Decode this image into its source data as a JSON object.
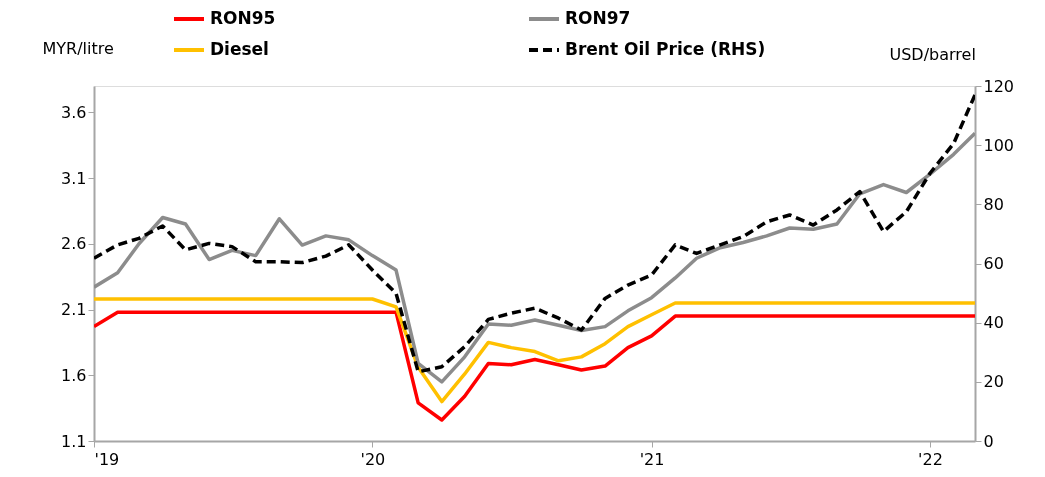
{
  "chart_data": {
    "type": "line",
    "ylabel": "MYR/litre",
    "y2label": "USD/barrel",
    "x": [
      "2019-01",
      "2019-02",
      "2019-03",
      "2019-04",
      "2019-05",
      "2019-06",
      "2019-07",
      "2019-08",
      "2019-09",
      "2019-10",
      "2019-11",
      "2019-12",
      "2020-01",
      "2020-02",
      "2020-03",
      "2020-04",
      "2020-05",
      "2020-06",
      "2020-07",
      "2020-08",
      "2020-09",
      "2020-10",
      "2020-11",
      "2020-12",
      "2021-01",
      "2021-02",
      "2021-03",
      "2021-04",
      "2021-05",
      "2021-06",
      "2021-07",
      "2021-08",
      "2021-09",
      "2021-10",
      "2021-11",
      "2021-12",
      "2022-01",
      "2022-02",
      "2022-03"
    ],
    "series": [
      {
        "name": "RON95",
        "color": "#ff0000",
        "line_style": "solid",
        "values": [
          1.97,
          2.08,
          2.08,
          2.08,
          2.08,
          2.08,
          2.08,
          2.08,
          2.08,
          2.08,
          2.08,
          2.08,
          2.08,
          2.08,
          1.39,
          1.26,
          1.44,
          1.69,
          1.68,
          1.72,
          1.68,
          1.64,
          1.67,
          1.81,
          1.9,
          2.05,
          2.05,
          2.05,
          2.05,
          2.05,
          2.05,
          2.05,
          2.05,
          2.05,
          2.05,
          2.05,
          2.05,
          2.05,
          2.05
        ]
      },
      {
        "name": "Diesel",
        "color": "#ffc000",
        "line_style": "solid",
        "values": [
          2.18,
          2.18,
          2.18,
          2.18,
          2.18,
          2.18,
          2.18,
          2.18,
          2.18,
          2.18,
          2.18,
          2.18,
          2.18,
          2.12,
          1.66,
          1.4,
          1.61,
          1.85,
          1.81,
          1.78,
          1.71,
          1.74,
          1.84,
          1.97,
          2.06,
          2.15,
          2.15,
          2.15,
          2.15,
          2.15,
          2.15,
          2.15,
          2.15,
          2.15,
          2.15,
          2.15,
          2.15,
          2.15,
          2.15
        ]
      },
      {
        "name": "RON97",
        "color": "#8c8c8c",
        "line_style": "solid",
        "values": [
          2.27,
          2.38,
          2.6,
          2.8,
          2.75,
          2.48,
          2.55,
          2.51,
          2.79,
          2.59,
          2.66,
          2.63,
          2.51,
          2.4,
          1.69,
          1.55,
          1.74,
          1.99,
          1.98,
          2.02,
          1.98,
          1.94,
          1.97,
          2.09,
          2.19,
          2.34,
          2.49,
          2.57,
          2.61,
          2.66,
          2.72,
          2.71,
          2.75,
          2.98,
          3.05,
          2.99,
          3.13,
          3.28,
          3.44
        ]
      },
      {
        "name": "Brent Oil Price (RHS)",
        "color": "#000000",
        "line_style": "dashed",
        "axis": "y2",
        "values": [
          61.8,
          66.3,
          68.5,
          72.7,
          64.6,
          66.8,
          65.7,
          60.6,
          60.6,
          60.3,
          62.5,
          66.3,
          57.8,
          49.9,
          23.4,
          25.1,
          31.9,
          41.1,
          43.2,
          44.9,
          41.5,
          37.5,
          48.2,
          52.7,
          56.1,
          66.3,
          63.4,
          66.3,
          69.1,
          74.1,
          76.4,
          73.0,
          78.1,
          84.3,
          70.8,
          77.5,
          90.5,
          100.6,
          117.0
        ]
      }
    ],
    "xlim": [
      "2019-01",
      "2022-03"
    ],
    "xticks": [
      {
        "value": "2019-01",
        "label": "'19"
      },
      {
        "value": "2020-01",
        "label": "'20"
      },
      {
        "value": "2021-01",
        "label": "'21"
      },
      {
        "value": "2022-01",
        "label": "'22"
      }
    ],
    "ylim": [
      1.1,
      3.8
    ],
    "yticks": [
      1.1,
      1.6,
      2.1,
      2.6,
      3.1,
      3.6
    ],
    "y2lim": [
      0,
      120
    ],
    "y2ticks": [
      0,
      20,
      40,
      60,
      80,
      100,
      120
    ],
    "grid": false,
    "legend": "top",
    "marker": "none"
  }
}
